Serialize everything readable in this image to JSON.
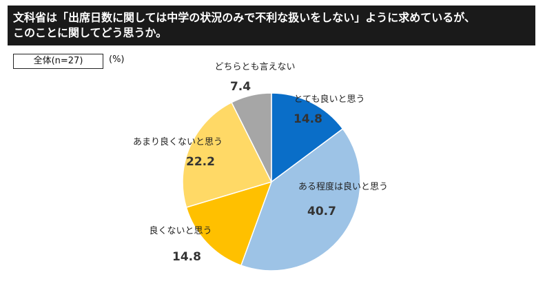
{
  "header": {
    "line1": "文科省は「出席日数に関しては中学の状況のみで不利な扱いをしない」ように求めているが、",
    "line2": "このことに関してどう思うか。"
  },
  "sample_label": "全体(n=27)",
  "unit_label": "(%)",
  "chart_data": {
    "type": "pie",
    "title": "",
    "slices": [
      {
        "label": "とても良いと思う",
        "value": 14.8,
        "value_text": "14.8",
        "color": "#0a6ec8"
      },
      {
        "label": "ある程度は良いと思う",
        "value": 40.7,
        "value_text": "40.7",
        "color": "#9dc3e6"
      },
      {
        "label": "良くないと思う",
        "value": 14.8,
        "value_text": "14.8",
        "color": "#ffc000"
      },
      {
        "label": "あまり良くないと思う",
        "value": 22.2,
        "value_text": "22.2",
        "color": "#ffd966"
      },
      {
        "label": "どちらとも言えない",
        "value": 7.4,
        "value_text": "7.4",
        "color": "#a6a6a6"
      }
    ],
    "start": "12 o'clock",
    "direction": "clockwise"
  }
}
